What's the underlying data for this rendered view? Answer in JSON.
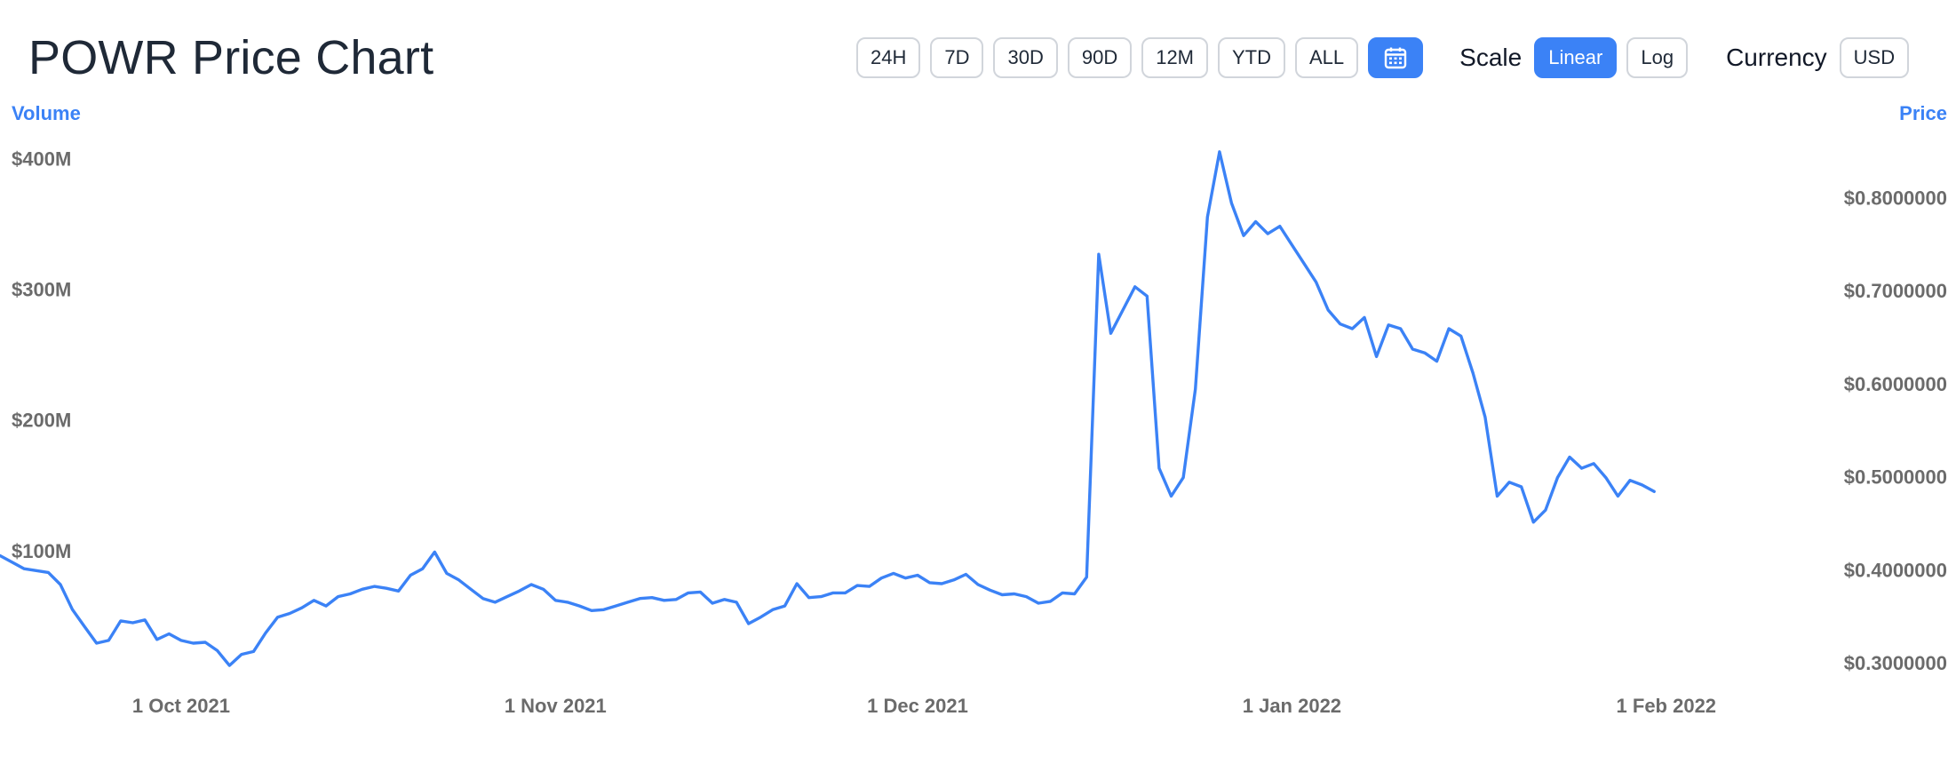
{
  "page": {
    "title": "POWR Price Chart"
  },
  "toolbar": {
    "ranges": [
      "24H",
      "7D",
      "30D",
      "90D",
      "12M",
      "YTD",
      "ALL"
    ],
    "calendar_icon": "calendar-icon",
    "scale_label": "Scale",
    "scale_options": [
      "Linear",
      "Log"
    ],
    "scale_selected": "Linear",
    "currency_label": "Currency",
    "currency_value": "USD"
  },
  "colors": {
    "price_line": "#3b82f6",
    "volume_bars": "#f1ddef",
    "axis_title": "#3b82f6",
    "axis_text": "#6b6b6b",
    "active_button": "#3b82f6"
  },
  "chart_data": {
    "type": "line",
    "title": "",
    "left_axis_title": "Volume",
    "right_axis_title": "Price",
    "left_ticks": [
      "$100M",
      "$200M",
      "$300M",
      "$400M"
    ],
    "left_tick_values": [
      100,
      200,
      300,
      400
    ],
    "right_ticks": [
      "$0.3000000",
      "$0.4000000",
      "$0.5000000",
      "$0.6000000",
      "$0.7000000",
      "$0.8000000"
    ],
    "right_tick_values": [
      0.3,
      0.4,
      0.5,
      0.6,
      0.7,
      0.8
    ],
    "x_ticks": [
      "1 Oct 2021",
      "1 Nov 2021",
      "1 Dec 2021",
      "1 Jan 2022",
      "1 Feb 2022"
    ],
    "x_tick_dates": [
      "2021-10-01",
      "2021-11-01",
      "2021-12-01",
      "2022-01-01",
      "2022-02-01"
    ],
    "x_range": [
      "2021-09-16",
      "2022-02-25"
    ],
    "left_range": [
      0,
      420
    ],
    "right_range": [
      0.28,
      0.87
    ],
    "grid": false,
    "series": [
      {
        "name": "Price",
        "axis": "right",
        "points": [
          [
            "2021-09-16",
            0.416
          ],
          [
            "2021-09-18",
            0.402
          ],
          [
            "2021-09-20",
            0.398
          ],
          [
            "2021-09-21",
            0.385
          ],
          [
            "2021-09-22",
            0.358
          ],
          [
            "2021-09-23",
            0.34
          ],
          [
            "2021-09-24",
            0.322
          ],
          [
            "2021-09-25",
            0.325
          ],
          [
            "2021-09-26",
            0.346
          ],
          [
            "2021-09-27",
            0.344
          ],
          [
            "2021-09-28",
            0.347
          ],
          [
            "2021-09-29",
            0.326
          ],
          [
            "2021-09-30",
            0.332
          ],
          [
            "2021-10-01",
            0.325
          ],
          [
            "2021-10-02",
            0.322
          ],
          [
            "2021-10-03",
            0.323
          ],
          [
            "2021-10-04",
            0.314
          ],
          [
            "2021-10-05",
            0.298
          ],
          [
            "2021-10-06",
            0.31
          ],
          [
            "2021-10-07",
            0.313
          ],
          [
            "2021-10-08",
            0.333
          ],
          [
            "2021-10-09",
            0.35
          ],
          [
            "2021-10-10",
            0.354
          ],
          [
            "2021-10-11",
            0.36
          ],
          [
            "2021-10-12",
            0.368
          ],
          [
            "2021-10-13",
            0.362
          ],
          [
            "2021-10-14",
            0.372
          ],
          [
            "2021-10-15",
            0.375
          ],
          [
            "2021-10-16",
            0.38
          ],
          [
            "2021-10-17",
            0.383
          ],
          [
            "2021-10-18",
            0.381
          ],
          [
            "2021-10-19",
            0.378
          ],
          [
            "2021-10-20",
            0.395
          ],
          [
            "2021-10-21",
            0.402
          ],
          [
            "2021-10-22",
            0.42
          ],
          [
            "2021-10-23",
            0.397
          ],
          [
            "2021-10-24",
            0.39
          ],
          [
            "2021-10-25",
            0.38
          ],
          [
            "2021-10-26",
            0.37
          ],
          [
            "2021-10-27",
            0.366
          ],
          [
            "2021-10-28",
            0.372
          ],
          [
            "2021-10-29",
            0.378
          ],
          [
            "2021-10-30",
            0.385
          ],
          [
            "2021-10-31",
            0.38
          ],
          [
            "2021-11-01",
            0.368
          ],
          [
            "2021-11-02",
            0.366
          ],
          [
            "2021-11-03",
            0.362
          ],
          [
            "2021-11-04",
            0.357
          ],
          [
            "2021-11-05",
            0.358
          ],
          [
            "2021-11-06",
            0.362
          ],
          [
            "2021-11-07",
            0.366
          ],
          [
            "2021-11-08",
            0.37
          ],
          [
            "2021-11-09",
            0.371
          ],
          [
            "2021-11-10",
            0.368
          ],
          [
            "2021-11-11",
            0.369
          ],
          [
            "2021-11-12",
            0.376
          ],
          [
            "2021-11-13",
            0.377
          ],
          [
            "2021-11-14",
            0.365
          ],
          [
            "2021-11-15",
            0.369
          ],
          [
            "2021-11-16",
            0.366
          ],
          [
            "2021-11-17",
            0.343
          ],
          [
            "2021-11-18",
            0.35
          ],
          [
            "2021-11-19",
            0.358
          ],
          [
            "2021-11-20",
            0.362
          ],
          [
            "2021-11-21",
            0.386
          ],
          [
            "2021-11-22",
            0.371
          ],
          [
            "2021-11-23",
            0.372
          ],
          [
            "2021-11-24",
            0.376
          ],
          [
            "2021-11-25",
            0.376
          ],
          [
            "2021-11-26",
            0.384
          ],
          [
            "2021-11-27",
            0.383
          ],
          [
            "2021-11-28",
            0.392
          ],
          [
            "2021-11-29",
            0.397
          ],
          [
            "2021-11-30",
            0.392
          ],
          [
            "2021-12-01",
            0.395
          ],
          [
            "2021-12-02",
            0.387
          ],
          [
            "2021-12-03",
            0.386
          ],
          [
            "2021-12-04",
            0.39
          ],
          [
            "2021-12-05",
            0.396
          ],
          [
            "2021-12-06",
            0.385
          ],
          [
            "2021-12-07",
            0.379
          ],
          [
            "2021-12-08",
            0.374
          ],
          [
            "2021-12-09",
            0.375
          ],
          [
            "2021-12-10",
            0.372
          ],
          [
            "2021-12-11",
            0.365
          ],
          [
            "2021-12-12",
            0.367
          ],
          [
            "2021-12-13",
            0.376
          ],
          [
            "2021-12-14",
            0.375
          ],
          [
            "2021-12-15",
            0.393
          ],
          [
            "2021-12-16",
            0.74
          ],
          [
            "2021-12-17",
            0.655
          ],
          [
            "2021-12-18",
            0.68
          ],
          [
            "2021-12-19",
            0.705
          ],
          [
            "2021-12-20",
            0.695
          ],
          [
            "2021-12-21",
            0.51
          ],
          [
            "2021-12-22",
            0.48
          ],
          [
            "2021-12-23",
            0.5
          ],
          [
            "2021-12-24",
            0.595
          ],
          [
            "2021-12-25",
            0.78
          ],
          [
            "2021-12-26",
            0.85
          ],
          [
            "2021-12-27",
            0.795
          ],
          [
            "2021-12-28",
            0.76
          ],
          [
            "2021-12-29",
            0.775
          ],
          [
            "2021-12-30",
            0.762
          ],
          [
            "2021-12-31",
            0.77
          ],
          [
            "2022-01-01",
            0.75
          ],
          [
            "2022-01-02",
            0.73
          ],
          [
            "2022-01-03",
            0.71
          ],
          [
            "2022-01-04",
            0.68
          ],
          [
            "2022-01-05",
            0.665
          ],
          [
            "2022-01-06",
            0.66
          ],
          [
            "2022-01-07",
            0.672
          ],
          [
            "2022-01-08",
            0.63
          ],
          [
            "2022-01-09",
            0.664
          ],
          [
            "2022-01-10",
            0.66
          ],
          [
            "2022-01-11",
            0.638
          ],
          [
            "2022-01-12",
            0.634
          ],
          [
            "2022-01-13",
            0.625
          ],
          [
            "2022-01-14",
            0.66
          ],
          [
            "2022-01-15",
            0.652
          ],
          [
            "2022-01-16",
            0.612
          ],
          [
            "2022-01-17",
            0.565
          ],
          [
            "2022-01-18",
            0.48
          ],
          [
            "2022-01-19",
            0.495
          ],
          [
            "2022-01-20",
            0.49
          ],
          [
            "2022-01-21",
            0.452
          ],
          [
            "2022-01-22",
            0.465
          ],
          [
            "2022-01-23",
            0.5
          ],
          [
            "2022-01-24",
            0.522
          ],
          [
            "2022-01-25",
            0.51
          ],
          [
            "2022-01-26",
            0.515
          ],
          [
            "2022-01-27",
            0.5
          ],
          [
            "2022-01-28",
            0.48
          ],
          [
            "2022-01-29",
            0.497
          ],
          [
            "2022-01-30",
            0.492
          ],
          [
            "2022-01-31",
            0.485
          ]
        ]
      },
      {
        "name": "Volume",
        "axis": "left",
        "points": []
      }
    ]
  }
}
